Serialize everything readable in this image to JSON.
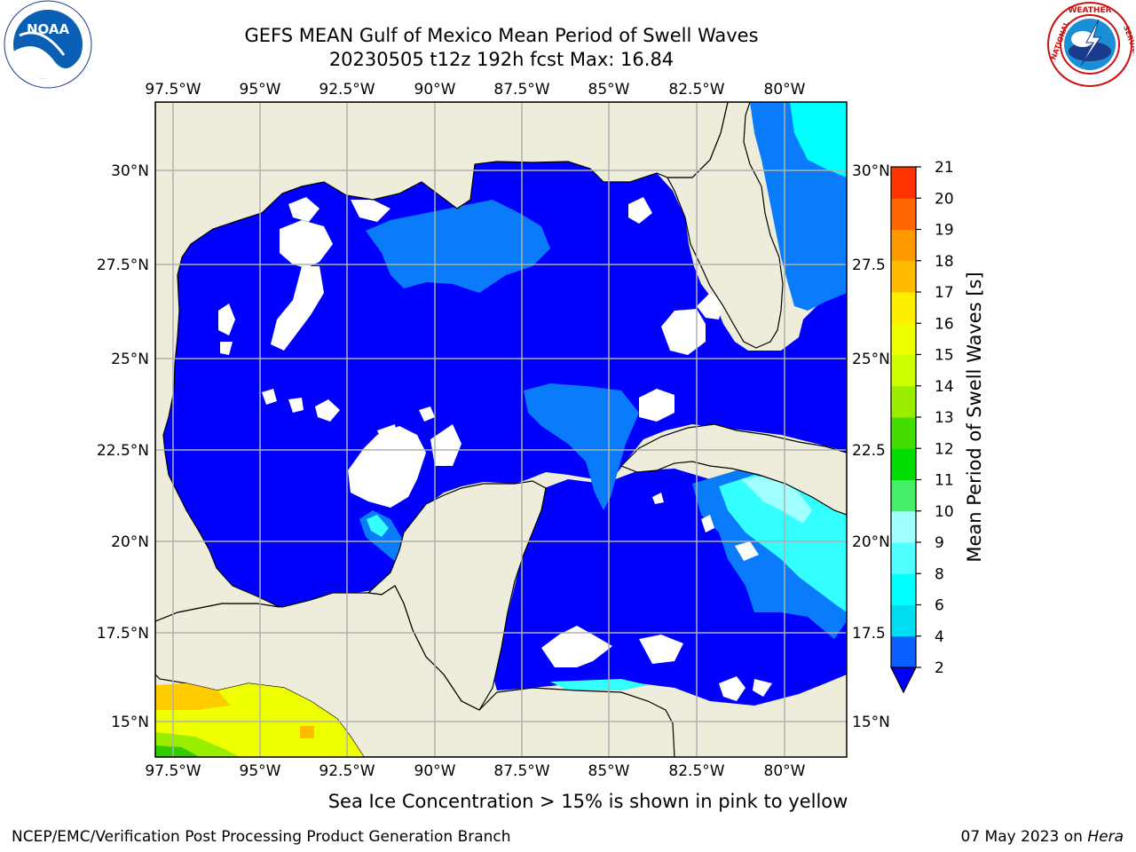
{
  "title": {
    "line1": "GEFS MEAN Gulf of Mexico Mean Period of Swell Waves",
    "line2": "20230505 t12z 192h fcst   Max: 16.84"
  },
  "logos": {
    "left": "NOAA",
    "left_ring_text": "NATIONAL OCEANIC AND ATMOSPHERIC ADMINISTRATION",
    "right_ring_text": "NATIONAL WEATHER SERVICE"
  },
  "map": {
    "lon_ticks": [
      "97.5°W",
      "95°W",
      "92.5°W",
      "90°W",
      "87.5°W",
      "85°W",
      "82.5°W",
      "80°W"
    ],
    "lat_ticks_left": [
      "30°N",
      "27.5°N",
      "25°N",
      "22.5°N",
      "20°N",
      "17.5°N",
      "15°N"
    ],
    "lat_ticks_right": [
      "30°N",
      "27.5",
      "25°N",
      "22.5",
      "20°N",
      "17.5",
      "15°N"
    ],
    "colors": {
      "land": "#eeeddc",
      "ocean_low": "#0000fe",
      "ocean_mid": "#0a7cfb"
    }
  },
  "colorbar": {
    "label": "Mean Period of Swell Waves [s]",
    "ticks": [
      "2",
      "4",
      "6",
      "8",
      "9",
      "10",
      "11",
      "12",
      "13",
      "14",
      "15",
      "16",
      "17",
      "18",
      "19",
      "20",
      "21"
    ],
    "colors": [
      "#0a60ff",
      "#00ddf0",
      "#00ffff",
      "#50ffff",
      "#a0ffff",
      "#44ee66",
      "#00dd00",
      "#44dd00",
      "#99ee00",
      "#ccff00",
      "#eeff00",
      "#ffee00",
      "#ffbb00",
      "#ff9900",
      "#ff6600",
      "#ff3300",
      "#ff0000"
    ]
  },
  "note": "Sea Ice Concentration > 15% is shown in pink to yellow",
  "footer": {
    "left": "NCEP/EMC/Verification Post Processing Product Generation Branch",
    "right_date": "07 May 2023 on ",
    "right_host": "Hera"
  }
}
